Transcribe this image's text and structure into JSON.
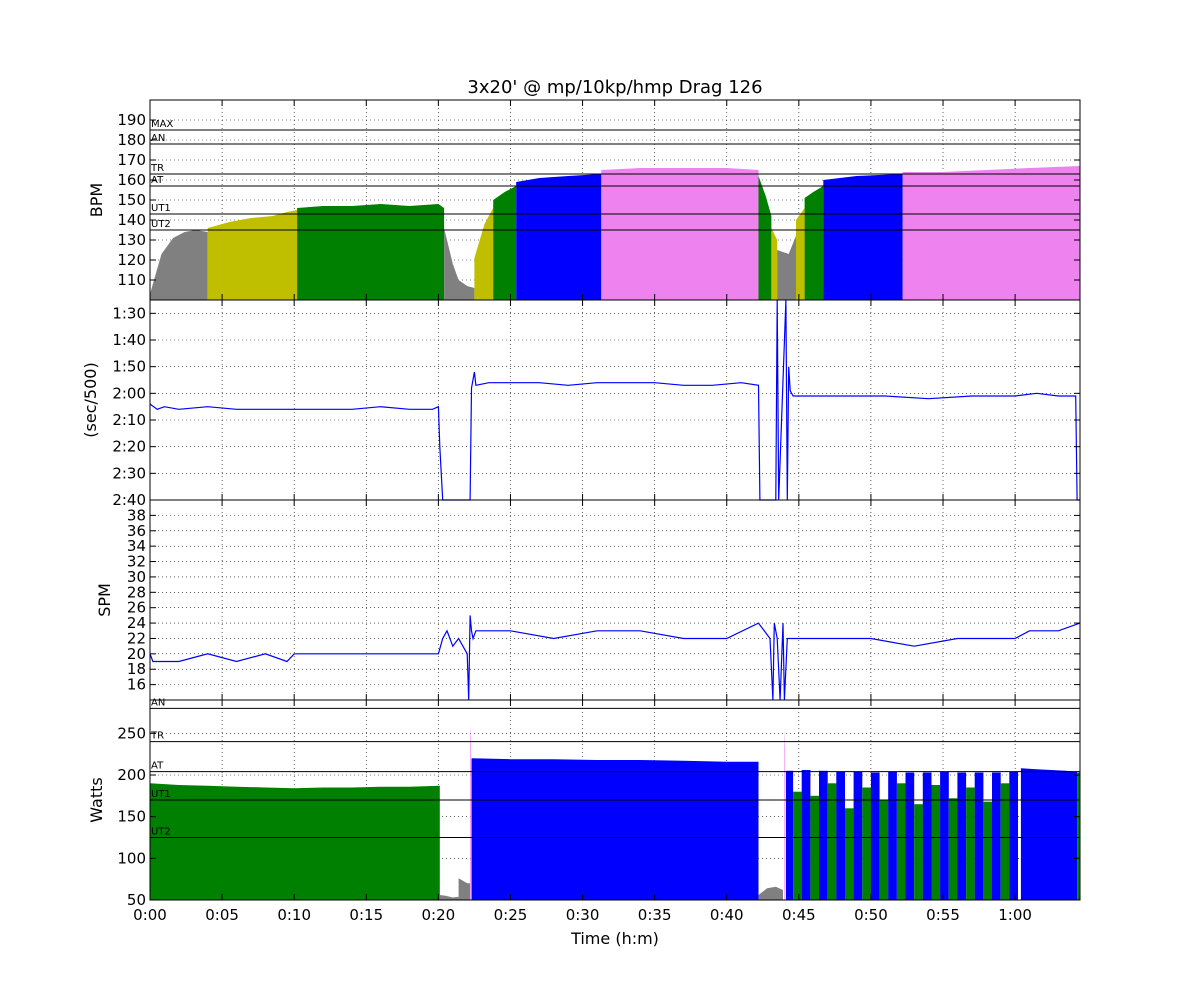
{
  "chart_data": [
    {
      "type": "area",
      "title": "3x20' @ mp/10kp/hmp  Drag 126",
      "ylabel": "BPM",
      "xlabel": "",
      "xlim": [
        0,
        64.5
      ],
      "ylim": [
        100,
        200
      ],
      "yticks": [
        110,
        120,
        130,
        140,
        150,
        160,
        170,
        180,
        190
      ],
      "grid": true,
      "zone_lines": [
        {
          "label": "MAX",
          "value": 185
        },
        {
          "label": "AN",
          "value": 178
        },
        {
          "label": "TR",
          "value": 163
        },
        {
          "label": "AT",
          "value": 157
        },
        {
          "label": "UT1",
          "value": 143
        },
        {
          "label": "UT2",
          "value": 135
        }
      ],
      "zone_colors": {
        "rest": "#808080",
        "ut2": "#bfbf00",
        "ut1": "#008000",
        "at": "#0000ff",
        "tr": "#ee82ee"
      },
      "series": [
        {
          "x": [
            0,
            0.8,
            1.6,
            2.4,
            3.2,
            4.0
          ],
          "y": [
            103,
            123,
            131,
            134,
            135,
            134
          ],
          "zone": "rest"
        },
        {
          "x": [
            4.0,
            5.5,
            7.0,
            8.5,
            9.5,
            10.2
          ],
          "y": [
            136,
            139,
            141,
            142,
            144,
            145
          ],
          "zone": "ut2"
        },
        {
          "x": [
            10.2,
            12,
            14,
            16,
            18,
            20,
            20.4
          ],
          "y": [
            146,
            147,
            147,
            148,
            147,
            148,
            146
          ],
          "zone": "ut1"
        },
        {
          "x": [
            20.4,
            21.0,
            21.4,
            22.0,
            22.5
          ],
          "y": [
            136,
            118,
            110,
            107,
            106
          ],
          "zone": "rest"
        },
        {
          "x": [
            22.5,
            23.2,
            23.8
          ],
          "y": [
            121,
            138,
            146
          ],
          "zone": "ut2"
        },
        {
          "x": [
            23.8,
            24.6,
            25.4
          ],
          "y": [
            150,
            154,
            157
          ],
          "zone": "ut1"
        },
        {
          "x": [
            25.4,
            27,
            29,
            31.3
          ],
          "y": [
            159,
            161,
            162,
            163
          ],
          "zone": "at"
        },
        {
          "x": [
            31.3,
            34,
            37,
            40,
            42.2
          ],
          "y": [
            165,
            166,
            166,
            166,
            165
          ],
          "zone": "tr"
        },
        {
          "x": [
            42.2,
            42.7,
            43.1
          ],
          "y": [
            162,
            152,
            142
          ],
          "zone": "ut1"
        },
        {
          "x": [
            43.1,
            43.5
          ],
          "y": [
            136,
            130
          ],
          "zone": "ut2"
        },
        {
          "x": [
            43.5,
            44.3,
            44.8
          ],
          "y": [
            125,
            123,
            132
          ],
          "zone": "rest"
        },
        {
          "x": [
            44.8,
            45.4
          ],
          "y": [
            140,
            146
          ],
          "zone": "ut2"
        },
        {
          "x": [
            45.4,
            46.0,
            46.7
          ],
          "y": [
            151,
            154,
            157
          ],
          "zone": "ut1"
        },
        {
          "x": [
            46.7,
            49,
            52.2
          ],
          "y": [
            160,
            162,
            163
          ],
          "zone": "at"
        },
        {
          "x": [
            52.2,
            55,
            58,
            61,
            64.5
          ],
          "y": [
            164,
            164,
            165,
            166,
            167
          ],
          "zone": "tr"
        }
      ]
    },
    {
      "type": "line",
      "ylabel": "(sec/500)",
      "xlabel": "",
      "xlim": [
        0,
        64.5
      ],
      "ylim": [
        160,
        85
      ],
      "ytick_labels": [
        "1:30",
        "1:40",
        "1:50",
        "2:00",
        "2:10",
        "2:20",
        "2:30",
        "2:40"
      ],
      "yticks": [
        90,
        100,
        110,
        120,
        130,
        140,
        150,
        160
      ],
      "grid": true,
      "color": "#0000ff",
      "x": [
        0,
        0.5,
        1.0,
        2.0,
        4.0,
        6.0,
        8.0,
        10.0,
        12.0,
        14.0,
        16.0,
        18.0,
        19.6,
        20.0,
        20.1,
        20.3,
        21.1,
        22.2,
        22.3,
        22.5,
        22.6,
        23.5,
        25,
        27,
        29,
        31,
        33,
        35,
        37,
        39,
        41,
        42.2,
        42.3,
        43.4,
        43.5,
        43.6,
        44.1,
        44.2,
        44.3,
        44.4,
        44.6,
        45,
        48,
        51,
        54,
        57,
        60,
        61.5,
        63,
        64.2,
        64.3,
        64.5
      ],
      "y": [
        124,
        126,
        125,
        126,
        125,
        126,
        126,
        126,
        126,
        126,
        125,
        126,
        126,
        125,
        140,
        160,
        160,
        160,
        118,
        112,
        117,
        116,
        116,
        116,
        117,
        116,
        116,
        116,
        117,
        117,
        116,
        117,
        160,
        160,
        85,
        160,
        85,
        160,
        110,
        119,
        121,
        121,
        121,
        121,
        122,
        121,
        121,
        120,
        121,
        121,
        160,
        160
      ]
    },
    {
      "type": "line",
      "ylabel": "SPM",
      "xlabel": "",
      "xlim": [
        0,
        64.5
      ],
      "ylim": [
        14,
        40
      ],
      "yticks": [
        16,
        18,
        20,
        22,
        24,
        26,
        28,
        30,
        32,
        34,
        36,
        38
      ],
      "grid": true,
      "color": "#0000ff",
      "x": [
        0,
        0.2,
        0.5,
        2,
        4,
        6,
        8,
        9.5,
        10,
        12,
        14,
        16,
        17,
        18,
        20,
        20.3,
        20.6,
        21.0,
        21.4,
        22.0,
        22.1,
        22.2,
        22.3,
        22.4,
        22.6,
        25,
        28,
        31,
        34,
        37,
        40,
        42.2,
        43.0,
        43.2,
        43.3,
        43.5,
        43.7,
        43.9,
        44.0,
        44.2,
        44.5,
        47,
        50,
        53,
        56,
        58,
        60,
        61,
        63,
        64.5
      ],
      "y": [
        20,
        19,
        19,
        19,
        20,
        19,
        20,
        19,
        20,
        20,
        20,
        20,
        20,
        20,
        20,
        22,
        23,
        21,
        22,
        20,
        14,
        25,
        23,
        22,
        23,
        23,
        22,
        23,
        23,
        22,
        22,
        24,
        22,
        14,
        24,
        22,
        14,
        24,
        14,
        22,
        22,
        22,
        22,
        21,
        22,
        22,
        22,
        23,
        23,
        24
      ]
    },
    {
      "type": "area",
      "ylabel": "Watts",
      "xlabel": "Time (h:m)",
      "xlim": [
        0,
        64.5
      ],
      "ylim": [
        50,
        290
      ],
      "yticks": [
        50,
        100,
        150,
        200,
        250
      ],
      "xticks": [
        0,
        5,
        10,
        15,
        20,
        25,
        30,
        35,
        40,
        45,
        50,
        55,
        60
      ],
      "xtick_labels": [
        "0:00",
        "0:05",
        "0:10",
        "0:15",
        "0:20",
        "0:25",
        "0:30",
        "0:35",
        "0:40",
        "0:45",
        "0:50",
        "0:55",
        "1:00"
      ],
      "grid": true,
      "zone_lines": [
        {
          "label": "AN",
          "value": 280
        },
        {
          "label": "TR",
          "value": 240
        },
        {
          "label": "AT",
          "value": 204
        },
        {
          "label": "UT1",
          "value": 170
        },
        {
          "label": "UT2",
          "value": 125
        }
      ],
      "zone_colors": {
        "rest": "#808080",
        "ut1": "#008000",
        "at": "#0000ff",
        "tr": "#ee82ee"
      },
      "series": [
        {
          "x": [
            0,
            2,
            4,
            6,
            8,
            10,
            12,
            14,
            16,
            18,
            20.1
          ],
          "y": [
            190,
            188,
            187,
            186,
            185,
            184,
            185,
            185,
            186,
            186,
            187
          ],
          "zone": "ut1"
        },
        {
          "x": [
            20.1,
            20.5,
            21,
            21.4
          ],
          "y": [
            56,
            55,
            53,
            54
          ],
          "zone": "rest"
        },
        {
          "x": [
            21.4,
            22.0,
            22.2
          ],
          "y": [
            76,
            70,
            70
          ],
          "zone": "rest"
        },
        {
          "x": [
            22.2,
            22.25
          ],
          "y": [
            260,
            240
          ],
          "zone": "tr"
        },
        {
          "x": [
            22.3,
            25,
            28,
            31,
            34,
            37,
            40,
            42.2
          ],
          "y": [
            220,
            219,
            219,
            218,
            218,
            217,
            216,
            216
          ],
          "zone": "at"
        },
        {
          "x": [
            42.2,
            42.8,
            43.4,
            43.9
          ],
          "y": [
            56,
            64,
            66,
            62
          ],
          "zone": "rest"
        },
        {
          "x": [
            44.0,
            44.05
          ],
          "y": [
            257,
            230
          ],
          "zone": "tr"
        },
        {
          "x": [
            44.1,
            44.6,
            45.2,
            45.8,
            46.4,
            47,
            47.6,
            48.2,
            48.8,
            49.4,
            50,
            50.6,
            51.2,
            51.8,
            52.4,
            53,
            53.6,
            54.2,
            54.8,
            55.4,
            56,
            56.6,
            57.2,
            57.8,
            58.4,
            59,
            59.6,
            60.2
          ],
          "y": [
            205,
            180,
            206,
            175,
            205,
            190,
            204,
            160,
            204,
            185,
            203,
            170,
            204,
            190,
            203,
            165,
            203,
            188,
            204,
            172,
            203,
            185,
            203,
            168,
            203,
            190,
            204,
            185
          ],
          "zone": "mixed"
        },
        {
          "x": [
            60.4,
            61.5,
            62.5,
            63.5,
            64.3
          ],
          "y": [
            208,
            207,
            206,
            205,
            204
          ],
          "zone": "at"
        },
        {
          "x": [
            64.3,
            64.5
          ],
          "y": [
            203,
            203
          ],
          "zone": "ut1"
        }
      ]
    }
  ]
}
